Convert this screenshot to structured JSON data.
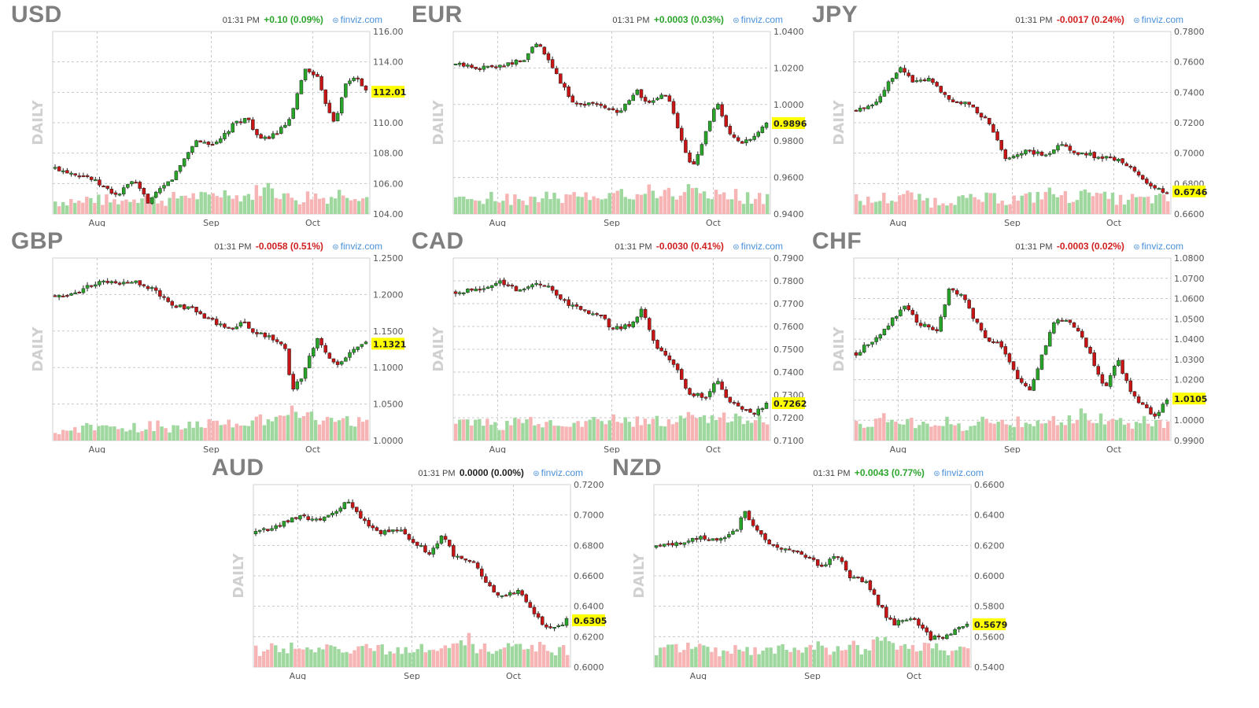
{
  "panels": [
    {
      "symbol": "USD",
      "time": "01:31 PM",
      "change": "+0.10 (0.09%)",
      "direction": "up",
      "source": "finviz.com",
      "axis_label": "DAILY",
      "last_label": "112.01"
    },
    {
      "symbol": "EUR",
      "time": "01:31 PM",
      "change": "+0.0003 (0.03%)",
      "direction": "up",
      "source": "finviz.com",
      "axis_label": "DAILY",
      "last_label": "0.9896"
    },
    {
      "symbol": "JPY",
      "time": "01:31 PM",
      "change": "-0.0017 (0.24%)",
      "direction": "down",
      "source": "finviz.com",
      "axis_label": "DAILY",
      "last_label": "0.6746"
    },
    {
      "symbol": "GBP",
      "time": "01:31 PM",
      "change": "-0.0058 (0.51%)",
      "direction": "down",
      "source": "finviz.com",
      "axis_label": "DAILY",
      "last_label": "1.1321"
    },
    {
      "symbol": "CAD",
      "time": "01:31 PM",
      "change": "-0.0030 (0.41%)",
      "direction": "down",
      "source": "finviz.com",
      "axis_label": "DAILY",
      "last_label": "0.7262"
    },
    {
      "symbol": "CHF",
      "time": "01:31 PM",
      "change": "-0.0003 (0.02%)",
      "direction": "down",
      "source": "finviz.com",
      "axis_label": "DAILY",
      "last_label": "1.0105"
    },
    {
      "symbol": "AUD",
      "time": "01:31 PM",
      "change": "0.0000 (0.00%)",
      "direction": "flat",
      "source": "finviz.com",
      "axis_label": "DAILY",
      "last_label": "0.6305"
    },
    {
      "symbol": "NZD",
      "time": "01:31 PM",
      "change": "+0.0043 (0.77%)",
      "direction": "up",
      "source": "finviz.com",
      "axis_label": "DAILY",
      "last_label": "0.5679"
    }
  ],
  "colors": {
    "up": "#2ea62e",
    "down": "#d22020",
    "candle_up": "#28a428",
    "candle_down": "#c81414",
    "vol_up": "#9fd89f",
    "vol_down": "#f7b4b4",
    "grid": "#c8c8c8",
    "highlight": "#ffff00"
  },
  "chart_data": [
    {
      "type": "candlestick",
      "title": "USD",
      "ylim": [
        104,
        116
      ],
      "grid": true,
      "yticks": [
        "116.00",
        "114.00",
        "112.00",
        "110.00",
        "108.00",
        "106.00",
        "104.00"
      ],
      "xticks": [
        "Aug",
        "Sep",
        "Oct"
      ],
      "path": [
        [
          0,
          107.0
        ],
        [
          10,
          106.5
        ],
        [
          20,
          105.2
        ],
        [
          25,
          106.2
        ],
        [
          30,
          104.8
        ],
        [
          38,
          106.4
        ],
        [
          45,
          108.8
        ],
        [
          52,
          108.6
        ],
        [
          58,
          110.0
        ],
        [
          62,
          110.3
        ],
        [
          66,
          108.8
        ],
        [
          72,
          109.4
        ],
        [
          76,
          110.3
        ],
        [
          80,
          113.5
        ],
        [
          84,
          113.2
        ],
        [
          86,
          111.8
        ],
        [
          90,
          110.0
        ],
        [
          93,
          112.4
        ],
        [
          97,
          113.1
        ],
        [
          100,
          112.01
        ]
      ],
      "volume": [
        0.25,
        0.3,
        0.2,
        0.35,
        0.3,
        0.25,
        0.3,
        0.4,
        0.5,
        0.35,
        0.3,
        0.4,
        0.5,
        0.45,
        0.4,
        0.55,
        0.6,
        0.45,
        0.5,
        0.7,
        0.9,
        0.55,
        0.4,
        0.35,
        0.5,
        0.4,
        0.45,
        0.6,
        0.5,
        0.4
      ]
    },
    {
      "type": "candlestick",
      "title": "EUR",
      "ylim": [
        0.94,
        1.04
      ],
      "grid": true,
      "yticks": [
        "1.0400",
        "1.0200",
        "1.0000",
        "0.9800",
        "0.9600",
        "0.9400"
      ],
      "xticks": [
        "Aug",
        "Sep",
        "Oct"
      ],
      "path": [
        [
          0,
          1.022
        ],
        [
          8,
          1.02
        ],
        [
          15,
          1.022
        ],
        [
          22,
          1.024
        ],
        [
          26,
          1.034
        ],
        [
          32,
          1.018
        ],
        [
          38,
          1.0
        ],
        [
          45,
          1.001
        ],
        [
          52,
          0.995
        ],
        [
          58,
          1.008
        ],
        [
          62,
          1.0
        ],
        [
          68,
          1.006
        ],
        [
          73,
          0.978
        ],
        [
          76,
          0.966
        ],
        [
          80,
          0.982
        ],
        [
          84,
          1.001
        ],
        [
          88,
          0.983
        ],
        [
          92,
          0.978
        ],
        [
          96,
          0.982
        ],
        [
          100,
          0.9896
        ]
      ],
      "volume": [
        0.3,
        0.35,
        0.3,
        0.4,
        0.35,
        0.3,
        0.3,
        0.4,
        0.5,
        0.4,
        0.35,
        0.45,
        0.5,
        0.55,
        0.6,
        0.5,
        0.55,
        0.7,
        0.8,
        0.55,
        0.6,
        0.5,
        0.9,
        0.6,
        0.55,
        0.45,
        0.5,
        0.4,
        0.35,
        0.3
      ]
    },
    {
      "type": "candlestick",
      "title": "JPY",
      "ylim": [
        0.66,
        0.78
      ],
      "grid": true,
      "yticks": [
        "0.7800",
        "0.7600",
        "0.7400",
        "0.7200",
        "0.7000",
        "0.6800",
        "0.6600"
      ],
      "xticks": [
        "Aug",
        "Sep",
        "Oct"
      ],
      "path": [
        [
          0,
          0.728
        ],
        [
          6,
          0.733
        ],
        [
          10,
          0.745
        ],
        [
          14,
          0.757
        ],
        [
          18,
          0.748
        ],
        [
          24,
          0.749
        ],
        [
          30,
          0.735
        ],
        [
          35,
          0.733
        ],
        [
          42,
          0.722
        ],
        [
          48,
          0.697
        ],
        [
          55,
          0.701
        ],
        [
          60,
          0.699
        ],
        [
          66,
          0.705
        ],
        [
          72,
          0.7
        ],
        [
          80,
          0.697
        ],
        [
          86,
          0.694
        ],
        [
          92,
          0.684
        ],
        [
          96,
          0.676
        ],
        [
          100,
          0.6746
        ]
      ],
      "volume": [
        0.3,
        0.25,
        0.4,
        0.35,
        0.5,
        0.45,
        0.3,
        0.25,
        0.3,
        0.35,
        0.3,
        0.3,
        0.35,
        0.4,
        0.3,
        0.35,
        0.4,
        0.5,
        0.6,
        0.45,
        0.4,
        0.5,
        0.7,
        0.4,
        0.35,
        0.3,
        0.35,
        0.3,
        0.35,
        0.3
      ]
    },
    {
      "type": "candlestick",
      "title": "GBP",
      "ylim": [
        1.0,
        1.25
      ],
      "grid": true,
      "yticks": [
        "1.2500",
        "1.2000",
        "1.1500",
        "1.1000",
        "1.0500",
        "1.0000"
      ],
      "xticks": [
        "Aug",
        "Sep",
        "Oct"
      ],
      "path": [
        [
          0,
          1.198
        ],
        [
          8,
          1.205
        ],
        [
          14,
          1.218
        ],
        [
          20,
          1.214
        ],
        [
          26,
          1.218
        ],
        [
          32,
          1.205
        ],
        [
          38,
          1.185
        ],
        [
          44,
          1.18
        ],
        [
          50,
          1.165
        ],
        [
          56,
          1.152
        ],
        [
          60,
          1.163
        ],
        [
          64,
          1.15
        ],
        [
          70,
          1.14
        ],
        [
          74,
          1.128
        ],
        [
          76,
          1.07
        ],
        [
          80,
          1.09
        ],
        [
          84,
          1.14
        ],
        [
          88,
          1.112
        ],
        [
          92,
          1.105
        ],
        [
          96,
          1.128
        ],
        [
          100,
          1.1321
        ]
      ],
      "volume": [
        0.2,
        0.25,
        0.3,
        0.25,
        0.2,
        0.3,
        0.25,
        0.2,
        0.25,
        0.3,
        0.25,
        0.3,
        0.35,
        0.3,
        0.4,
        0.35,
        0.45,
        0.5,
        0.55,
        0.6,
        0.7,
        0.9,
        1.0,
        0.8,
        0.7,
        0.55,
        0.6,
        0.65,
        0.5,
        0.4
      ]
    },
    {
      "type": "candlestick",
      "title": "CAD",
      "ylim": [
        0.71,
        0.79
      ],
      "grid": true,
      "yticks": [
        "0.7900",
        "0.7800",
        "0.7700",
        "0.7600",
        "0.7500",
        "0.7400",
        "0.7300",
        "0.7200",
        "0.7100"
      ],
      "xticks": [
        "Aug",
        "Sep",
        "Oct"
      ],
      "path": [
        [
          0,
          0.775
        ],
        [
          8,
          0.777
        ],
        [
          14,
          0.78
        ],
        [
          20,
          0.776
        ],
        [
          28,
          0.779
        ],
        [
          34,
          0.772
        ],
        [
          40,
          0.767
        ],
        [
          46,
          0.766
        ],
        [
          50,
          0.759
        ],
        [
          56,
          0.76
        ],
        [
          60,
          0.768
        ],
        [
          64,
          0.752
        ],
        [
          70,
          0.744
        ],
        [
          75,
          0.731
        ],
        [
          80,
          0.729
        ],
        [
          84,
          0.736
        ],
        [
          88,
          0.727
        ],
        [
          92,
          0.724
        ],
        [
          96,
          0.722
        ],
        [
          100,
          0.7262
        ]
      ],
      "volume": [
        0.45,
        0.5,
        0.45,
        0.55,
        0.4,
        0.5,
        0.45,
        0.5,
        0.4,
        0.45,
        0.4,
        0.45,
        0.5,
        0.45,
        0.5,
        0.55,
        0.45,
        0.5,
        0.55,
        0.5,
        0.6,
        0.7,
        0.75,
        0.65,
        0.6,
        0.7,
        0.6,
        0.55,
        0.6,
        0.5
      ]
    },
    {
      "type": "candlestick",
      "title": "CHF",
      "ylim": [
        0.99,
        1.08
      ],
      "grid": true,
      "yticks": [
        "1.0800",
        "1.0700",
        "1.0600",
        "1.0500",
        "1.0400",
        "1.0300",
        "1.0200",
        "1.0100",
        "1.0000",
        "0.9900"
      ],
      "xticks": [
        "Aug",
        "Sep",
        "Oct"
      ],
      "path": [
        [
          0,
          1.033
        ],
        [
          6,
          1.04
        ],
        [
          12,
          1.05
        ],
        [
          16,
          1.057
        ],
        [
          20,
          1.047
        ],
        [
          26,
          1.045
        ],
        [
          30,
          1.065
        ],
        [
          34,
          1.062
        ],
        [
          38,
          1.05
        ],
        [
          42,
          1.04
        ],
        [
          46,
          1.038
        ],
        [
          52,
          1.02
        ],
        [
          56,
          1.015
        ],
        [
          60,
          1.033
        ],
        [
          64,
          1.05
        ],
        [
          68,
          1.048
        ],
        [
          72,
          1.044
        ],
        [
          76,
          1.03
        ],
        [
          80,
          1.016
        ],
        [
          84,
          1.03
        ],
        [
          88,
          1.015
        ],
        [
          92,
          1.007
        ],
        [
          96,
          1.002
        ],
        [
          100,
          1.0105
        ]
      ],
      "volume": [
        0.45,
        0.5,
        0.6,
        0.55,
        0.5,
        0.45,
        0.5,
        0.4,
        0.45,
        0.4,
        0.35,
        0.4,
        0.45,
        0.4,
        0.45,
        0.5,
        0.45,
        0.55,
        0.6,
        0.5,
        0.65,
        0.8,
        0.55,
        0.6,
        0.5,
        0.55,
        0.45,
        0.5,
        0.45,
        0.4
      ]
    },
    {
      "type": "candlestick",
      "title": "AUD",
      "ylim": [
        0.6,
        0.72
      ],
      "grid": true,
      "yticks": [
        "0.7200",
        "0.7000",
        "0.6800",
        "0.6600",
        "0.6400",
        "0.6200",
        "0.6000"
      ],
      "xticks": [
        "Aug",
        "Sep",
        "Oct"
      ],
      "path": [
        [
          0,
          0.688
        ],
        [
          8,
          0.694
        ],
        [
          14,
          0.699
        ],
        [
          20,
          0.696
        ],
        [
          26,
          0.703
        ],
        [
          30,
          0.709
        ],
        [
          34,
          0.697
        ],
        [
          40,
          0.688
        ],
        [
          46,
          0.691
        ],
        [
          50,
          0.683
        ],
        [
          56,
          0.675
        ],
        [
          60,
          0.686
        ],
        [
          64,
          0.673
        ],
        [
          70,
          0.669
        ],
        [
          74,
          0.657
        ],
        [
          78,
          0.647
        ],
        [
          84,
          0.65
        ],
        [
          88,
          0.641
        ],
        [
          92,
          0.628
        ],
        [
          96,
          0.626
        ],
        [
          100,
          0.6305
        ]
      ],
      "volume": [
        0.4,
        0.45,
        0.4,
        0.5,
        0.45,
        0.4,
        0.45,
        0.5,
        0.45,
        0.4,
        0.45,
        0.5,
        0.45,
        0.5,
        0.55,
        0.5,
        0.55,
        0.6,
        0.5,
        0.7,
        0.9,
        0.55,
        0.5,
        0.55,
        0.5,
        0.45,
        0.5,
        0.55,
        0.45,
        0.4
      ]
    },
    {
      "type": "candlestick",
      "title": "NZD",
      "ylim": [
        0.54,
        0.66
      ],
      "grid": true,
      "yticks": [
        "0.6600",
        "0.6400",
        "0.6200",
        "0.6000",
        "0.5800",
        "0.5600",
        "0.5400"
      ],
      "xticks": [
        "Aug",
        "Sep",
        "Oct"
      ],
      "path": [
        [
          0,
          0.619
        ],
        [
          8,
          0.622
        ],
        [
          14,
          0.625
        ],
        [
          20,
          0.624
        ],
        [
          26,
          0.63
        ],
        [
          28,
          0.643
        ],
        [
          32,
          0.632
        ],
        [
          36,
          0.62
        ],
        [
          42,
          0.618
        ],
        [
          48,
          0.612
        ],
        [
          54,
          0.606
        ],
        [
          58,
          0.614
        ],
        [
          62,
          0.6
        ],
        [
          68,
          0.595
        ],
        [
          72,
          0.58
        ],
        [
          76,
          0.568
        ],
        [
          80,
          0.572
        ],
        [
          84,
          0.57
        ],
        [
          88,
          0.559
        ],
        [
          92,
          0.56
        ],
        [
          96,
          0.564
        ],
        [
          100,
          0.5679
        ]
      ],
      "volume": [
        0.4,
        0.45,
        0.5,
        0.55,
        0.5,
        0.45,
        0.4,
        0.45,
        0.5,
        0.45,
        0.4,
        0.45,
        0.5,
        0.45,
        0.5,
        0.55,
        0.45,
        0.5,
        0.55,
        0.5,
        0.6,
        0.7,
        0.55,
        0.5,
        0.6,
        0.55,
        0.5,
        0.45,
        0.5,
        0.45
      ]
    }
  ]
}
